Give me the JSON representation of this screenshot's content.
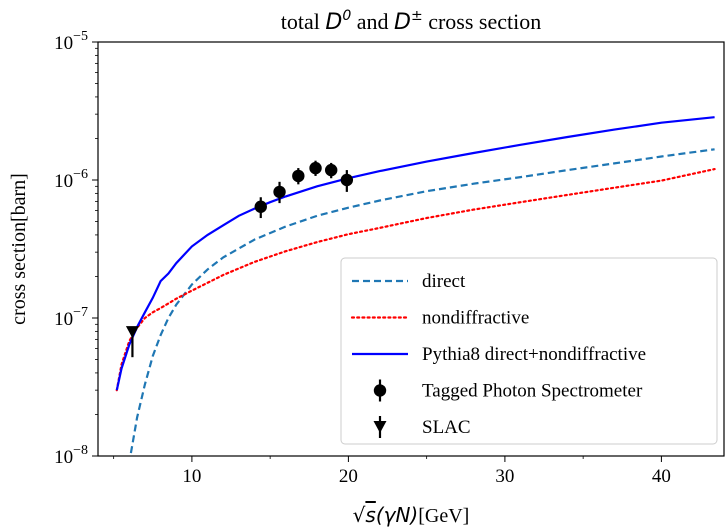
{
  "chart_data": {
    "type": "line",
    "title": {
      "prefix": "total ",
      "d0_symbol": "D",
      "d0_sup": "0",
      "and_text": " and ",
      "dpm_symbol": "D",
      "dpm_sup": "±",
      "suffix": " cross section"
    },
    "xlabel": {
      "sqrt_symbol": "√",
      "s_symbol": "s",
      "paren_text": "(γN)",
      "unit": "[GeV]"
    },
    "ylabel": "cross section[barn]",
    "xlim": [
      4.0,
      44.0
    ],
    "ylim": [
      1e-08,
      1e-05
    ],
    "yscale": "log",
    "grid": false,
    "legend_placement": "lower-right",
    "x_ticks": [
      {
        "value": 10,
        "label": "10"
      },
      {
        "value": 20,
        "label": "20"
      },
      {
        "value": 30,
        "label": "30"
      },
      {
        "value": 40,
        "label": "40"
      }
    ],
    "y_ticks": [
      {
        "value": 1e-08,
        "base": "10",
        "exp": "−8"
      },
      {
        "value": 1e-07,
        "base": "10",
        "exp": "−7"
      },
      {
        "value": 1e-06,
        "base": "10",
        "exp": "−6"
      },
      {
        "value": 1e-05,
        "base": "10",
        "exp": "−5"
      }
    ],
    "series": [
      {
        "name": "direct",
        "style": "dashed",
        "color": "#1f77b4",
        "points": [
          [
            6.1,
            1.05e-08
          ],
          [
            6.5,
            1.9e-08
          ],
          [
            7.0,
            3.3e-08
          ],
          [
            7.5,
            5.3e-08
          ],
          [
            8.0,
            7.5e-08
          ],
          [
            8.5,
            1e-07
          ],
          [
            9.0,
            1.25e-07
          ],
          [
            10.0,
            1.75e-07
          ],
          [
            11.0,
            2.25e-07
          ],
          [
            12.0,
            2.75e-07
          ],
          [
            14.0,
            3.7e-07
          ],
          [
            16.0,
            4.6e-07
          ],
          [
            18.0,
            5.5e-07
          ],
          [
            20.0,
            6.3e-07
          ],
          [
            22.0,
            7.1e-07
          ],
          [
            25.0,
            8.3e-07
          ],
          [
            28.0,
            9.4e-07
          ],
          [
            31.0,
            1.05e-06
          ],
          [
            34.0,
            1.18e-06
          ],
          [
            37.0,
            1.32e-06
          ],
          [
            40.0,
            1.48e-06
          ],
          [
            43.4,
            1.67e-06
          ]
        ]
      },
      {
        "name": "nondiffractive",
        "style": "dotted",
        "color": "#ff0000",
        "points": [
          [
            5.2,
            3e-08
          ],
          [
            5.5,
            4.6e-08
          ],
          [
            6.0,
            6.8e-08
          ],
          [
            6.5,
            8.5e-08
          ],
          [
            7.0,
            1e-07
          ],
          [
            7.5,
            1.1e-07
          ],
          [
            8.0,
            1.18e-07
          ],
          [
            9.0,
            1.38e-07
          ],
          [
            10.0,
            1.58e-07
          ],
          [
            11.0,
            1.8e-07
          ],
          [
            12.0,
            2.05e-07
          ],
          [
            14.0,
            2.55e-07
          ],
          [
            16.0,
            3.05e-07
          ],
          [
            18.0,
            3.55e-07
          ],
          [
            20.0,
            4.05e-07
          ],
          [
            22.0,
            4.5e-07
          ],
          [
            25.0,
            5.3e-07
          ],
          [
            28.0,
            6.1e-07
          ],
          [
            31.0,
            6.9e-07
          ],
          [
            34.0,
            7.8e-07
          ],
          [
            37.0,
            8.8e-07
          ],
          [
            40.0,
            9.9e-07
          ],
          [
            43.4,
            1.2e-06
          ]
        ]
      },
      {
        "name": "Pythia8 direct+nondiffractive",
        "style": "solid",
        "color": "#0000ff",
        "points": [
          [
            5.2,
            3e-08
          ],
          [
            5.5,
            4.3e-08
          ],
          [
            6.0,
            6.4e-08
          ],
          [
            6.5,
            8.6e-08
          ],
          [
            7.0,
            1.1e-07
          ],
          [
            7.5,
            1.4e-07
          ],
          [
            8.0,
            1.85e-07
          ],
          [
            8.5,
            2.1e-07
          ],
          [
            9.0,
            2.5e-07
          ],
          [
            10.0,
            3.3e-07
          ],
          [
            11.0,
            4e-07
          ],
          [
            12.0,
            4.7e-07
          ],
          [
            13.0,
            5.5e-07
          ],
          [
            14.0,
            6.2e-07
          ],
          [
            15.0,
            6.9e-07
          ],
          [
            16.0,
            7.6e-07
          ],
          [
            18.0,
            9e-07
          ],
          [
            20.0,
            1.03e-06
          ],
          [
            22.0,
            1.16e-06
          ],
          [
            25.0,
            1.36e-06
          ],
          [
            28.0,
            1.57e-06
          ],
          [
            31.0,
            1.8e-06
          ],
          [
            34.0,
            2.05e-06
          ],
          [
            37.0,
            2.32e-06
          ],
          [
            40.0,
            2.6e-06
          ],
          [
            43.4,
            2.85e-06
          ]
        ]
      },
      {
        "name": "Tagged Photon Spectrometer",
        "style": "marker-circle",
        "color": "#000000",
        "points": [
          {
            "x": 14.4,
            "y": 6.4e-07,
            "ylo": 5.3e-07,
            "yhi": 7.5e-07
          },
          {
            "x": 15.6,
            "y": 8.2e-07,
            "ylo": 6.8e-07,
            "yhi": 9.7e-07
          },
          {
            "x": 16.8,
            "y": 1.07e-06,
            "ylo": 9.3e-07,
            "yhi": 1.22e-06
          },
          {
            "x": 17.9,
            "y": 1.22e-06,
            "ylo": 1.07e-06,
            "yhi": 1.38e-06
          },
          {
            "x": 18.9,
            "y": 1.18e-06,
            "ylo": 1.03e-06,
            "yhi": 1.33e-06
          },
          {
            "x": 19.9,
            "y": 1e-06,
            "ylo": 8.2e-07,
            "yhi": 1.18e-06
          }
        ]
      },
      {
        "name": "SLAC",
        "style": "marker-triangle-down",
        "color": "#000000",
        "points": [
          {
            "x": 6.2,
            "y": 7.9e-08,
            "ylo": 5.2e-08,
            "yhi": 8.6e-08
          }
        ]
      }
    ]
  }
}
